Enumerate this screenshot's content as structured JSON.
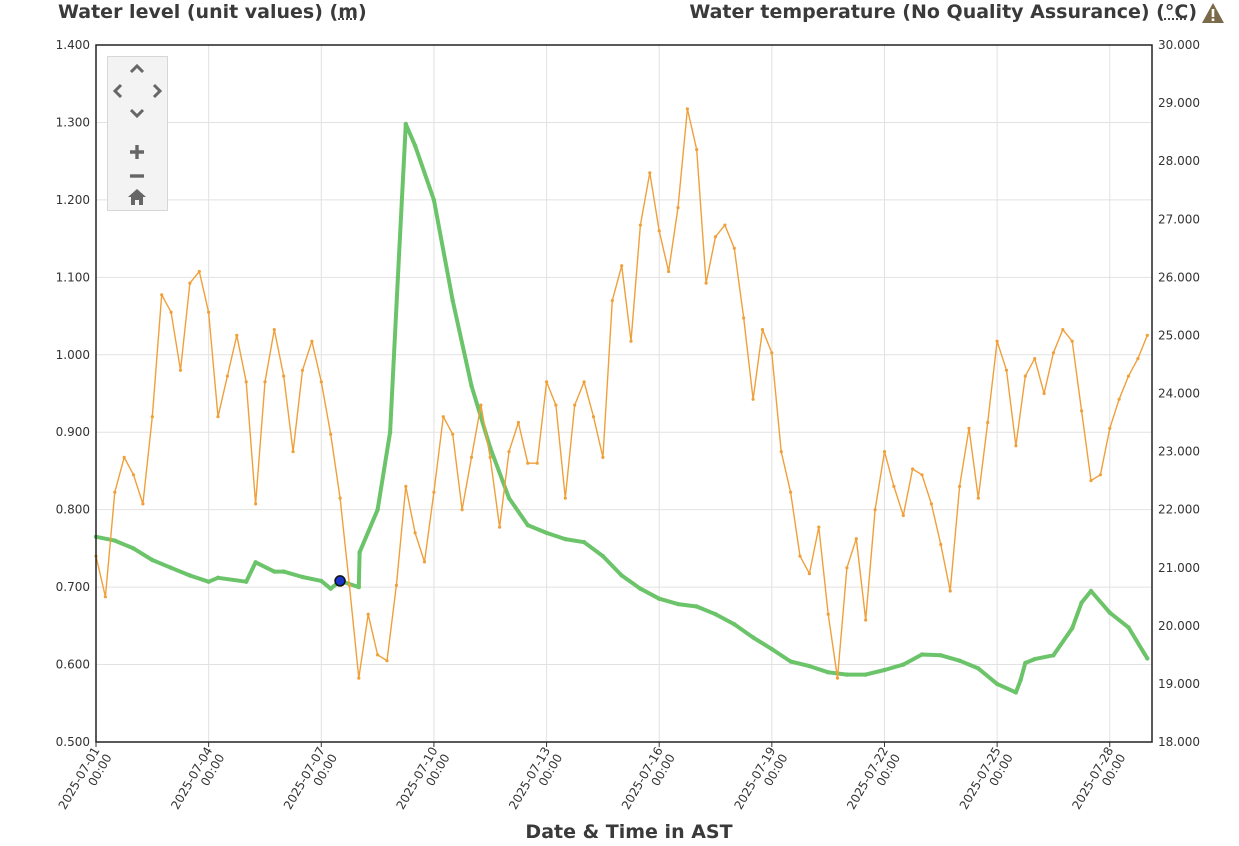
{
  "titles": {
    "left_text": "Water level (unit values) (",
    "left_unit": "m",
    "left_close": ")",
    "right_text": "Water temperature (No Quality Assurance) (",
    "right_unit": "°C",
    "right_close": ")"
  },
  "icons": {
    "warning": "warning-triangle-icon",
    "pan_up": "chevron-up-icon",
    "pan_left": "chevron-left-icon",
    "pan_right": "chevron-right-icon",
    "pan_down": "chevron-down-icon",
    "zoom_in": "plus-icon",
    "zoom_out": "minus-icon",
    "reset": "home-icon"
  },
  "chart_data": {
    "type": "line",
    "xlabel": "Date & Time in AST",
    "x_ticks": [
      [
        "2025-07-01",
        "00:00"
      ],
      [
        "2025-07-04",
        "00:00"
      ],
      [
        "2025-07-07",
        "00:00"
      ],
      [
        "2025-07-10",
        "00:00"
      ],
      [
        "2025-07-13",
        "00:00"
      ],
      [
        "2025-07-16",
        "00:00"
      ],
      [
        "2025-07-19",
        "00:00"
      ],
      [
        "2025-07-22",
        "00:00"
      ],
      [
        "2025-07-25",
        "00:00"
      ],
      [
        "2025-07-28",
        "00:00"
      ]
    ],
    "xlim": [
      "2025-07-01",
      "2025-07-29"
    ],
    "y_left": {
      "ylabel": "Water level (unit values) (m)",
      "ylim": [
        0.5,
        1.4
      ],
      "ticks": [
        "0.500",
        "0.600",
        "0.700",
        "0.800",
        "0.900",
        "1.000",
        "1.100",
        "1.200",
        "1.300",
        "1.400"
      ]
    },
    "y_right": {
      "ylabel": "Water temperature (No Quality Assurance) (°C)",
      "ylim": [
        18,
        30
      ],
      "ticks": [
        "18.000",
        "19.000",
        "20.000",
        "21.000",
        "22.000",
        "23.000",
        "24.000",
        "25.000",
        "26.000",
        "27.000",
        "28.000",
        "29.000",
        "30.000"
      ]
    },
    "grid": true,
    "series": [
      {
        "axis": "left",
        "color": "#6cc46a",
        "points": [
          [
            "2025-07-01 00:00",
            0.765
          ],
          [
            "2025-07-01 12:00",
            0.76
          ],
          [
            "2025-07-02 00:00",
            0.75
          ],
          [
            "2025-07-02 12:00",
            0.735
          ],
          [
            "2025-07-03 00:00",
            0.725
          ],
          [
            "2025-07-03 12:00",
            0.715
          ],
          [
            "2025-07-04 00:00",
            0.707
          ],
          [
            "2025-07-04 06:00",
            0.712
          ],
          [
            "2025-07-05 00:00",
            0.707
          ],
          [
            "2025-07-05 06:00",
            0.732
          ],
          [
            "2025-07-05 18:00",
            0.72
          ],
          [
            "2025-07-06 00:00",
            0.72
          ],
          [
            "2025-07-06 12:00",
            0.713
          ],
          [
            "2025-07-07 00:00",
            0.708
          ],
          [
            "2025-07-07 06:00",
            0.698
          ],
          [
            "2025-07-07 12:00",
            0.708
          ],
          [
            "2025-07-08 00:00",
            0.7
          ],
          [
            "2025-07-08 00:30",
            0.745
          ],
          [
            "2025-07-08 12:00",
            0.8
          ],
          [
            "2025-07-08 20:00",
            0.9
          ],
          [
            "2025-07-09 01:00",
            1.1
          ],
          [
            "2025-07-09 06:00",
            1.298
          ],
          [
            "2025-07-09 12:00",
            1.27
          ],
          [
            "2025-07-10 00:00",
            1.2
          ],
          [
            "2025-07-10 12:00",
            1.07
          ],
          [
            "2025-07-11 00:00",
            0.96
          ],
          [
            "2025-07-11 12:00",
            0.88
          ],
          [
            "2025-07-12 00:00",
            0.815
          ],
          [
            "2025-07-12 12:00",
            0.78
          ],
          [
            "2025-07-13 00:00",
            0.77
          ],
          [
            "2025-07-13 12:00",
            0.762
          ],
          [
            "2025-07-14 00:00",
            0.758
          ],
          [
            "2025-07-14 12:00",
            0.74
          ],
          [
            "2025-07-15 00:00",
            0.715
          ],
          [
            "2025-07-15 12:00",
            0.698
          ],
          [
            "2025-07-16 00:00",
            0.685
          ],
          [
            "2025-07-16 12:00",
            0.678
          ],
          [
            "2025-07-17 00:00",
            0.675
          ],
          [
            "2025-07-17 12:00",
            0.665
          ],
          [
            "2025-07-18 00:00",
            0.652
          ],
          [
            "2025-07-18 12:00",
            0.635
          ],
          [
            "2025-07-19 00:00",
            0.62
          ],
          [
            "2025-07-19 12:00",
            0.604
          ],
          [
            "2025-07-20 00:00",
            0.598
          ],
          [
            "2025-07-20 12:00",
            0.59
          ],
          [
            "2025-07-21 00:00",
            0.587
          ],
          [
            "2025-07-21 12:00",
            0.587
          ],
          [
            "2025-07-22 00:00",
            0.593
          ],
          [
            "2025-07-22 12:00",
            0.6
          ],
          [
            "2025-07-23 00:00",
            0.613
          ],
          [
            "2025-07-23 12:00",
            0.612
          ],
          [
            "2025-07-24 00:00",
            0.605
          ],
          [
            "2025-07-24 12:00",
            0.595
          ],
          [
            "2025-07-25 00:00",
            0.575
          ],
          [
            "2025-07-25 12:00",
            0.564
          ],
          [
            "2025-07-25 15:00",
            0.58
          ],
          [
            "2025-07-25 18:00",
            0.602
          ],
          [
            "2025-07-26 00:00",
            0.607
          ],
          [
            "2025-07-26 12:00",
            0.612
          ],
          [
            "2025-07-27 00:00",
            0.647
          ],
          [
            "2025-07-27 06:00",
            0.68
          ],
          [
            "2025-07-27 12:00",
            0.695
          ],
          [
            "2025-07-28 00:00",
            0.667
          ],
          [
            "2025-07-28 12:00",
            0.648
          ],
          [
            "2025-07-29 00:00",
            0.608
          ]
        ]
      },
      {
        "axis": "right",
        "color": "#f0a03a",
        "points": [
          [
            "2025-07-01 00:00",
            21.2
          ],
          [
            "2025-07-01 06:00",
            20.5
          ],
          [
            "2025-07-01 12:00",
            22.3
          ],
          [
            "2025-07-01 18:00",
            22.9
          ],
          [
            "2025-07-02 00:00",
            22.6
          ],
          [
            "2025-07-02 06:00",
            22.1
          ],
          [
            "2025-07-02 12:00",
            23.6
          ],
          [
            "2025-07-02 18:00",
            25.7
          ],
          [
            "2025-07-03 00:00",
            25.4
          ],
          [
            "2025-07-03 06:00",
            24.4
          ],
          [
            "2025-07-03 12:00",
            25.9
          ],
          [
            "2025-07-03 18:00",
            26.1
          ],
          [
            "2025-07-04 00:00",
            25.4
          ],
          [
            "2025-07-04 06:00",
            23.6
          ],
          [
            "2025-07-04 12:00",
            24.3
          ],
          [
            "2025-07-04 18:00",
            25.0
          ],
          [
            "2025-07-05 00:00",
            24.2
          ],
          [
            "2025-07-05 06:00",
            22.1
          ],
          [
            "2025-07-05 12:00",
            24.2
          ],
          [
            "2025-07-05 18:00",
            25.1
          ],
          [
            "2025-07-06 00:00",
            24.3
          ],
          [
            "2025-07-06 06:00",
            23.0
          ],
          [
            "2025-07-06 12:00",
            24.4
          ],
          [
            "2025-07-06 18:00",
            24.9
          ],
          [
            "2025-07-07 00:00",
            24.2
          ],
          [
            "2025-07-07 06:00",
            23.3
          ],
          [
            "2025-07-07 12:00",
            22.2
          ],
          [
            "2025-07-07 18:00",
            20.7
          ],
          [
            "2025-07-08 00:00",
            19.1
          ],
          [
            "2025-07-08 06:00",
            20.2
          ],
          [
            "2025-07-08 12:00",
            19.5
          ],
          [
            "2025-07-08 18:00",
            19.4
          ],
          [
            "2025-07-09 00:00",
            20.7
          ],
          [
            "2025-07-09 06:00",
            22.4
          ],
          [
            "2025-07-09 12:00",
            21.6
          ],
          [
            "2025-07-09 18:00",
            21.1
          ],
          [
            "2025-07-10 00:00",
            22.3
          ],
          [
            "2025-07-10 06:00",
            23.6
          ],
          [
            "2025-07-10 12:00",
            23.3
          ],
          [
            "2025-07-10 18:00",
            22.0
          ],
          [
            "2025-07-11 00:00",
            22.9
          ],
          [
            "2025-07-11 06:00",
            23.8
          ],
          [
            "2025-07-11 12:00",
            22.9
          ],
          [
            "2025-07-11 18:00",
            21.7
          ],
          [
            "2025-07-12 00:00",
            23.0
          ],
          [
            "2025-07-12 06:00",
            23.5
          ],
          [
            "2025-07-12 12:00",
            22.8
          ],
          [
            "2025-07-12 18:00",
            22.8
          ],
          [
            "2025-07-13 00:00",
            24.2
          ],
          [
            "2025-07-13 06:00",
            23.8
          ],
          [
            "2025-07-13 12:00",
            22.2
          ],
          [
            "2025-07-13 18:00",
            23.8
          ],
          [
            "2025-07-14 00:00",
            24.2
          ],
          [
            "2025-07-14 06:00",
            23.6
          ],
          [
            "2025-07-14 12:00",
            22.9
          ],
          [
            "2025-07-14 18:00",
            25.6
          ],
          [
            "2025-07-15 00:00",
            26.2
          ],
          [
            "2025-07-15 06:00",
            24.9
          ],
          [
            "2025-07-15 12:00",
            26.9
          ],
          [
            "2025-07-15 18:00",
            27.8
          ],
          [
            "2025-07-16 00:00",
            26.8
          ],
          [
            "2025-07-16 06:00",
            26.1
          ],
          [
            "2025-07-16 12:00",
            27.2
          ],
          [
            "2025-07-16 18:00",
            28.9
          ],
          [
            "2025-07-17 00:00",
            28.2
          ],
          [
            "2025-07-17 06:00",
            25.9
          ],
          [
            "2025-07-17 12:00",
            26.7
          ],
          [
            "2025-07-17 18:00",
            26.9
          ],
          [
            "2025-07-18 00:00",
            26.5
          ],
          [
            "2025-07-18 06:00",
            25.3
          ],
          [
            "2025-07-18 12:00",
            23.9
          ],
          [
            "2025-07-18 18:00",
            25.1
          ],
          [
            "2025-07-19 00:00",
            24.7
          ],
          [
            "2025-07-19 06:00",
            23.0
          ],
          [
            "2025-07-19 12:00",
            22.3
          ],
          [
            "2025-07-19 18:00",
            21.2
          ],
          [
            "2025-07-20 00:00",
            20.9
          ],
          [
            "2025-07-20 06:00",
            21.7
          ],
          [
            "2025-07-20 12:00",
            20.2
          ],
          [
            "2025-07-20 18:00",
            19.1
          ],
          [
            "2025-07-21 00:00",
            21.0
          ],
          [
            "2025-07-21 06:00",
            21.5
          ],
          [
            "2025-07-21 12:00",
            20.1
          ],
          [
            "2025-07-21 18:00",
            22.0
          ],
          [
            "2025-07-22 00:00",
            23.0
          ],
          [
            "2025-07-22 06:00",
            22.4
          ],
          [
            "2025-07-22 12:00",
            21.9
          ],
          [
            "2025-07-22 18:00",
            22.7
          ],
          [
            "2025-07-23 00:00",
            22.6
          ],
          [
            "2025-07-23 06:00",
            22.1
          ],
          [
            "2025-07-23 12:00",
            21.4
          ],
          [
            "2025-07-23 18:00",
            20.6
          ],
          [
            "2025-07-24 00:00",
            22.4
          ],
          [
            "2025-07-24 06:00",
            23.4
          ],
          [
            "2025-07-24 12:00",
            22.2
          ],
          [
            "2025-07-24 18:00",
            23.5
          ],
          [
            "2025-07-25 00:00",
            24.9
          ],
          [
            "2025-07-25 06:00",
            24.4
          ],
          [
            "2025-07-25 12:00",
            23.1
          ],
          [
            "2025-07-25 18:00",
            24.3
          ],
          [
            "2025-07-26 00:00",
            24.6
          ],
          [
            "2025-07-26 06:00",
            24.0
          ],
          [
            "2025-07-26 12:00",
            24.7
          ],
          [
            "2025-07-26 18:00",
            25.1
          ],
          [
            "2025-07-27 00:00",
            24.9
          ],
          [
            "2025-07-27 06:00",
            23.7
          ],
          [
            "2025-07-27 12:00",
            22.5
          ],
          [
            "2025-07-27 18:00",
            22.6
          ],
          [
            "2025-07-28 00:00",
            23.4
          ],
          [
            "2025-07-28 06:00",
            23.9
          ],
          [
            "2025-07-28 12:00",
            24.3
          ],
          [
            "2025-07-28 18:00",
            24.6
          ],
          [
            "2025-07-29 00:00",
            25.0
          ]
        ]
      }
    ],
    "marker": {
      "x": "2025-07-07 12:00",
      "y": 0.708,
      "axis": "left",
      "color": "#1a35c8"
    },
    "legend": "none"
  }
}
